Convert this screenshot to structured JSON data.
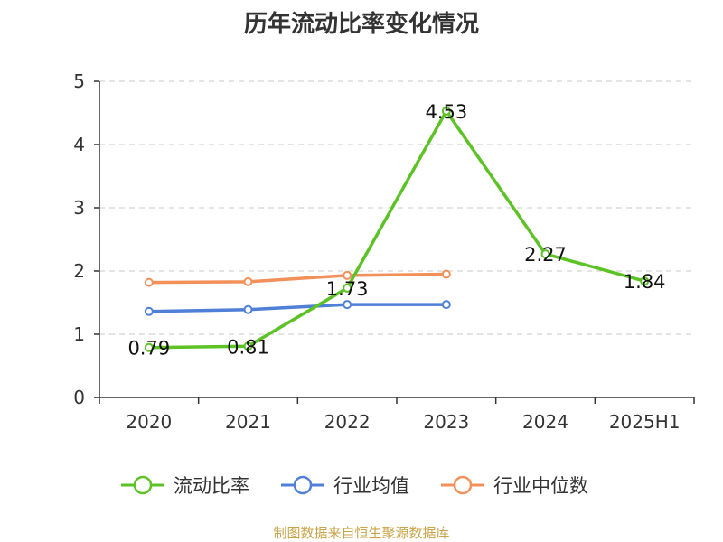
{
  "chart_data": {
    "type": "line",
    "title": "历年流动比率变化情况",
    "categories": [
      "2020",
      "2021",
      "2022",
      "2023",
      "2024",
      "2025H1"
    ],
    "ylim": [
      0,
      5
    ],
    "yticks": [
      "0",
      "1",
      "2",
      "3",
      "4",
      "5"
    ],
    "grid": true,
    "legend_position": "bottom",
    "series": [
      {
        "name": "流动比率",
        "color": "#5cc226",
        "values": [
          0.79,
          0.81,
          1.73,
          4.53,
          2.27,
          1.84
        ],
        "labels": [
          "0.79",
          "0.81",
          "1.73",
          "4.53",
          "2.27",
          "1.84"
        ]
      },
      {
        "name": "行业均值",
        "color": "#4f7fd6",
        "values": [
          1.36,
          1.39,
          1.47,
          1.47,
          null,
          null
        ]
      },
      {
        "name": "行业中位数",
        "color": "#f2905a",
        "values": [
          1.82,
          1.83,
          1.93,
          1.95,
          null,
          null
        ]
      }
    ]
  },
  "source": "制图数据来自恒生聚源数据库"
}
